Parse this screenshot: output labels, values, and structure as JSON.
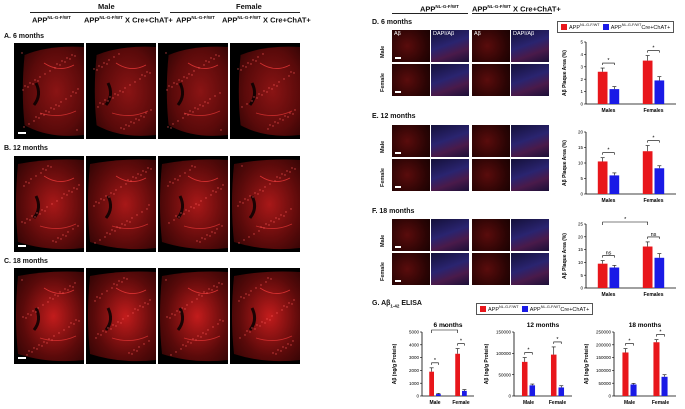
{
  "header": {
    "male": "Male",
    "female": "Female",
    "genotype_wt": "APP",
    "genotype_wt_sup": "NL-G-F/WT",
    "genotype_cre": "APP",
    "genotype_cre_sup": "NL-G-F/WT",
    "genotype_cre_suffix": " X Cre+ChAT+"
  },
  "left_panels": [
    {
      "label": "A. 6 months"
    },
    {
      "label": "B. 12 months"
    },
    {
      "label": "C. 18 months"
    }
  ],
  "right_header": {
    "genotype_wt": "APP",
    "genotype_wt_sup": "NL-G-F/WT",
    "genotype_cre": "APP",
    "genotype_cre_sup": "NL-G-F/WT",
    "genotype_cre_suffix": " X Cre+ChAT+"
  },
  "right_panels": [
    {
      "label": "D. 6 months"
    },
    {
      "label": "E. 12 months"
    },
    {
      "label": "F. 18 months"
    }
  ],
  "tile_labels": {
    "ab": "Aβ",
    "dapi_ab": "DAPI/Aβ"
  },
  "row_labels": {
    "male": "Male",
    "female": "Female"
  },
  "legend": {
    "wt": "APP",
    "wt_sup": "NL-G-F/WT",
    "cre": "APP",
    "cre_sup": "NL-G-F/WT",
    "cre_suffix": "Cre+ChAT+"
  },
  "elisa": {
    "label": "G. Aβ",
    "label_sub": "1-42",
    "label_suffix": " ELISA"
  },
  "colors": {
    "wt": "#e8161b",
    "cre": "#1a1ae6"
  },
  "chart_data": [
    {
      "type": "bar",
      "panel": "D",
      "categories": [
        "Males",
        "Females"
      ],
      "series": [
        {
          "name": "APPNL-G-F/WT",
          "values": [
            2.6,
            3.5
          ],
          "errors": [
            0.3,
            0.4
          ]
        },
        {
          "name": "APPNL-G-F/WT Cre+ChAT+",
          "values": [
            1.2,
            1.9
          ],
          "errors": [
            0.2,
            0.3
          ]
        }
      ],
      "ylabel": "Aβ Plaque Area (%)",
      "ylim": [
        0,
        5
      ],
      "yticks": [
        "0",
        "1",
        "2",
        "3",
        "4",
        "5"
      ],
      "sig": [
        {
          "group": 0,
          "text": "*"
        },
        {
          "group": 1,
          "text": "*"
        }
      ]
    },
    {
      "type": "bar",
      "panel": "E",
      "categories": [
        "Males",
        "Females"
      ],
      "series": [
        {
          "name": "APPNL-G-F/WT",
          "values": [
            10.5,
            13.8
          ],
          "errors": [
            1.2,
            1.8
          ]
        },
        {
          "name": "APPNL-G-F/WT Cre+ChAT+",
          "values": [
            6.0,
            8.3
          ],
          "errors": [
            0.8,
            0.8
          ]
        }
      ],
      "ylabel": "Aβ Plaque Area (%)",
      "ylim": [
        0,
        20
      ],
      "yticks": [
        "0",
        "5",
        "10",
        "15",
        "20"
      ],
      "sig": [
        {
          "group": 0,
          "text": "*"
        },
        {
          "group": 1,
          "text": "*"
        }
      ]
    },
    {
      "type": "bar",
      "panel": "F",
      "categories": [
        "Males",
        "Females"
      ],
      "series": [
        {
          "name": "APPNL-G-F/WT",
          "values": [
            9.5,
            16.2
          ],
          "errors": [
            1.2,
            1.8
          ]
        },
        {
          "name": "APPNL-G-F/WT Cre+ChAT+",
          "values": [
            8.0,
            11.8
          ],
          "errors": [
            0.8,
            1.6
          ]
        }
      ],
      "ylabel": "Aβ Plaque Area (%)",
      "ylim": [
        0,
        25
      ],
      "yticks": [
        "0",
        "5",
        "10",
        "15",
        "20",
        "25"
      ],
      "sig": [
        {
          "group": 0,
          "text": "ns"
        },
        {
          "group": 1,
          "text": "ns"
        }
      ],
      "sig_across": {
        "text": "*"
      }
    },
    {
      "type": "bar",
      "panel": "G1",
      "title": "6 months",
      "categories": [
        "Male",
        "Female"
      ],
      "series": [
        {
          "name": "APPNL-G-F/WT",
          "values": [
            1900,
            3300
          ],
          "errors": [
            300,
            400
          ]
        },
        {
          "name": "APPNL-G-F/WT Cre+ChAT+",
          "values": [
            150,
            400
          ],
          "errors": [
            50,
            100
          ]
        }
      ],
      "ylabel": "Aβ (ng/g Protein)",
      "ylim": [
        0,
        5000
      ],
      "yticks": [
        "0",
        "1000",
        "2000",
        "3000",
        "4000",
        "5000"
      ],
      "sig": [
        {
          "group": 0,
          "text": "*"
        },
        {
          "group": 1,
          "text": "*"
        }
      ],
      "sig_across": {
        "text": "*"
      }
    },
    {
      "type": "bar",
      "panel": "G2",
      "title": "12 months",
      "categories": [
        "Male",
        "Female"
      ],
      "series": [
        {
          "name": "APPNL-G-F/WT",
          "values": [
            80000,
            97000
          ],
          "errors": [
            10000,
            18000
          ]
        },
        {
          "name": "APPNL-G-F/WT Cre+ChAT+",
          "values": [
            25000,
            20000
          ],
          "errors": [
            3000,
            4000
          ]
        }
      ],
      "ylabel": "Aβ (ng/g Protein)",
      "ylim": [
        0,
        150000
      ],
      "yticks": [
        "0",
        "50000",
        "100000",
        "150000"
      ],
      "sig": [
        {
          "group": 0,
          "text": "*"
        },
        {
          "group": 1,
          "text": "*"
        }
      ]
    },
    {
      "type": "bar",
      "panel": "G3",
      "title": "18 months",
      "categories": [
        "Male",
        "Female"
      ],
      "series": [
        {
          "name": "APPNL-G-F/WT",
          "values": [
            170000,
            210000
          ],
          "errors": [
            15000,
            10000
          ]
        },
        {
          "name": "APPNL-G-F/WT Cre+ChAT+",
          "values": [
            45000,
            75000
          ],
          "errors": [
            4000,
            8000
          ]
        }
      ],
      "ylabel": "Aβ (ng/g Protein)",
      "ylim": [
        0,
        250000
      ],
      "yticks": [
        "0",
        "50000",
        "100000",
        "150000",
        "200000",
        "250000"
      ],
      "sig": [
        {
          "group": 0,
          "text": "*"
        },
        {
          "group": 1,
          "text": "*"
        }
      ]
    }
  ]
}
